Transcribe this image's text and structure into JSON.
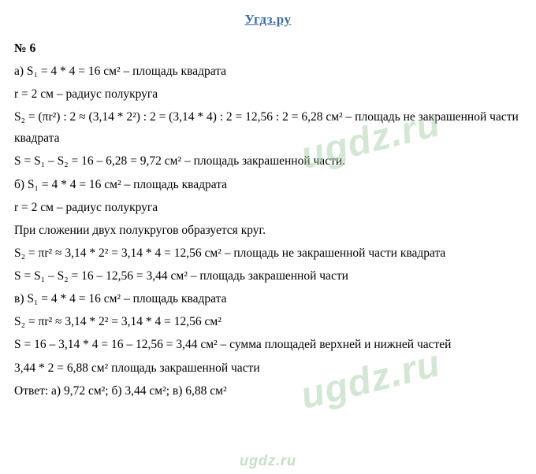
{
  "header": "Угдз.ру",
  "problem_label": "№ 6",
  "lines": {
    "a1": "а) S₁ = 4 * 4 = 16 см² – площадь квадрата",
    "a2": "r = 2 см – радиус полукруга",
    "a3": "S₂ = (πr²) : 2 ≈ (3,14 * 2²) : 2 = (3,14 * 4) : 2 = 12,56 : 2 = 6,28 см² – площадь не закрашенной части квадрата",
    "a4": "S = S₁ – S₂ = 16 – 6,28 = 9,72 см² – площадь закрашенной части.",
    "b1": "б) S₁ = 4 * 4 = 16 см² – площадь квадрата",
    "b2": "r = 2 см – радиус полукруга",
    "b3": "При сложении двух полукругов образуется круг.",
    "b4": "S₂ = πr²  ≈ 3,14 * 2² = 3,14 * 4 = 12,56 см² – площадь не закрашенной части квадрата",
    "b5": "S = S₁ – S₂ = 16 – 12,56 = 3,44 см² – площадь закрашенной части",
    "c1": "в) S₁ = 4 * 4 = 16 см² – площадь квадрата",
    "c2": "S₂ = πr²  ≈ 3,14 * 2² = 3,14 * 4 = 12,56 см²",
    "c3": "S = 16 – 3,14 * 4 = 16 – 12,56 = 3,44 см² – сумма площадей верхней и нижней частей",
    "c4": "3,44 * 2 = 6,88 см² площадь закрашенной части",
    "answer": "Ответ: а) 9,72 см²;  б) 3,44 см²; в) 6,88 см²"
  },
  "watermark": "ugdz.ru",
  "colors": {
    "header": "#3b6ea5",
    "text": "#000000",
    "watermark": "rgba(160,200,160,0.45)",
    "background": "#ffffff"
  },
  "typography": {
    "body_family": "Times New Roman",
    "body_size_pt": 12,
    "header_size_pt": 13,
    "watermark_family": "Arial",
    "watermark_size_pt": 36
  }
}
